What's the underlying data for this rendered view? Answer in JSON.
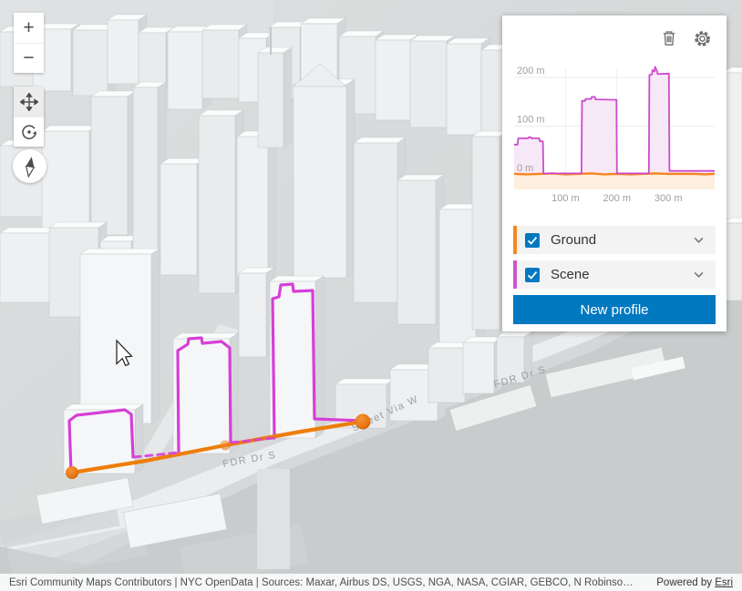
{
  "controls": {
    "zoom_in": "+",
    "zoom_out": "−"
  },
  "map": {
    "street_labels": [
      "FDR Dr S",
      "FDR Dr S",
      "Street Via W"
    ]
  },
  "panel": {
    "legend": {
      "items": [
        {
          "label": "Ground",
          "color": "#f5891e"
        },
        {
          "label": "Scene",
          "color": "#cd56cd"
        }
      ]
    },
    "button": {
      "label": "New profile"
    },
    "accent_blue": "#0079c1"
  },
  "chart_data": {
    "type": "area",
    "title": "",
    "xlabel": "",
    "ylabel": "",
    "xlim": [
      0,
      390
    ],
    "ylim": [
      -30,
      230
    ],
    "grid": true,
    "x_ticks": [
      {
        "value": 100,
        "label": "100 m"
      },
      {
        "value": 200,
        "label": "200 m"
      },
      {
        "value": 300,
        "label": "300 m"
      }
    ],
    "y_ticks": [
      {
        "value": 0,
        "label": "0 m"
      },
      {
        "value": 100,
        "label": "100 m"
      },
      {
        "value": 200,
        "label": "200 m"
      }
    ],
    "series": [
      {
        "name": "Ground",
        "color": "#f5841f",
        "fill": "#fdeedd",
        "points": [
          [
            0,
            2
          ],
          [
            25,
            1
          ],
          [
            50,
            2
          ],
          [
            75,
            3
          ],
          [
            100,
            1
          ],
          [
            125,
            2
          ],
          [
            150,
            3
          ],
          [
            175,
            1
          ],
          [
            200,
            2
          ],
          [
            225,
            1
          ],
          [
            250,
            2
          ],
          [
            275,
            3
          ],
          [
            300,
            2
          ],
          [
            325,
            2
          ],
          [
            350,
            2
          ],
          [
            370,
            1
          ],
          [
            390,
            2
          ]
        ]
      },
      {
        "name": "Scene",
        "color": "#cc4ccc",
        "fill": "#f7e8f7",
        "points": [
          [
            0,
            62
          ],
          [
            7,
            62
          ],
          [
            8,
            75
          ],
          [
            27,
            75
          ],
          [
            28,
            77
          ],
          [
            33,
            77
          ],
          [
            34,
            75
          ],
          [
            49,
            75
          ],
          [
            50,
            69
          ],
          [
            56,
            69
          ],
          [
            57,
            3
          ],
          [
            131,
            3
          ],
          [
            132,
            152
          ],
          [
            138,
            152
          ],
          [
            139,
            156
          ],
          [
            150,
            156
          ],
          [
            151,
            160
          ],
          [
            157,
            160
          ],
          [
            158,
            155
          ],
          [
            199,
            154
          ],
          [
            200,
            3
          ],
          [
            262,
            3
          ],
          [
            263,
            205
          ],
          [
            268,
            206
          ],
          [
            269,
            215
          ],
          [
            273,
            212
          ],
          [
            274,
            222
          ],
          [
            278,
            213
          ],
          [
            279,
            207
          ],
          [
            301,
            208
          ],
          [
            302,
            8
          ],
          [
            390,
            8
          ]
        ]
      }
    ]
  },
  "attribution": {
    "text": "Esri Community Maps Contributors | NYC OpenData | Sources: Maxar, Airbus DS, USGS, NGA, NASA, CGIAR, GEBCO, N Robinso…",
    "powered_by": "Powered by",
    "brand_link": "Esri"
  }
}
